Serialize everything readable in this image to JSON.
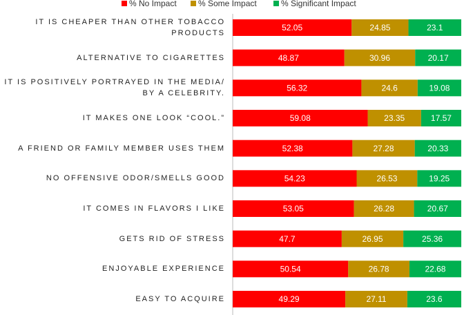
{
  "chart_data": {
    "type": "stacked-bar-horizontal",
    "categories": [
      "IT IS CHEAPER THAN OTHER TOBACCO PRODUCTS",
      "ALTERNATIVE TO CIGARETTES",
      "IT IS POSITIVELY PORTRAYED IN THE MEDIA/ BY A CELEBRITY.",
      "IT MAKES ONE LOOK “COOL.”",
      "A FRIEND OR FAMILY MEMBER USES THEM",
      "NO OFFENSIVE ODOR/SMELLS GOOD",
      "IT COMES IN FLAVORS I LIKE",
      "GETS RID OF STRESS",
      "ENJOYABLE EXPERIENCE",
      "EASY TO ACQUIRE"
    ],
    "series": [
      {
        "name": "% No Impact",
        "color": "#ff0000",
        "values": [
          52.05,
          48.87,
          56.32,
          59.08,
          52.38,
          54.23,
          53.05,
          47.7,
          50.54,
          49.29
        ]
      },
      {
        "name": "% Some Impact",
        "color": "#bf9000",
        "values": [
          24.85,
          30.96,
          24.6,
          23.35,
          27.28,
          26.53,
          26.28,
          26.95,
          26.78,
          27.11
        ]
      },
      {
        "name": "% Significant Impact",
        "color": "#00b050",
        "values": [
          23.1,
          20.17,
          19.08,
          17.57,
          20.33,
          19.25,
          20.67,
          25.36,
          22.68,
          23.6
        ]
      }
    ],
    "legend": "top",
    "data_labels": true
  }
}
